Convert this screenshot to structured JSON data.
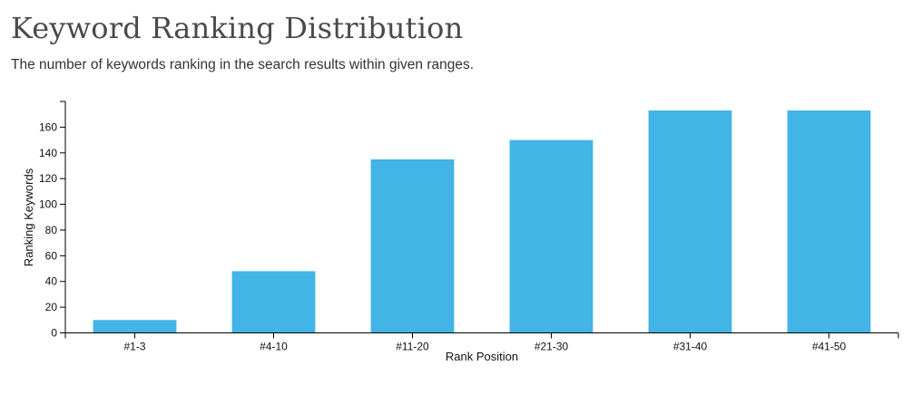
{
  "header": {
    "title": "Keyword Ranking Distribution",
    "subtitle": "The number of keywords ranking in the search results within given ranges."
  },
  "colors": {
    "bar": "#42b4e6",
    "axis": "#000000"
  },
  "chart_data": {
    "type": "bar",
    "title": "Keyword Ranking Distribution",
    "subtitle": "The number of keywords ranking in the search results within given ranges.",
    "xlabel": "Rank Position",
    "ylabel": "Ranking Keywords",
    "categories": [
      "#1-3",
      "#4-10",
      "#11-20",
      "#21-30",
      "#31-40",
      "#41-50"
    ],
    "values": [
      10,
      48,
      135,
      150,
      173,
      173
    ],
    "ylim": [
      0,
      180
    ],
    "yticks": [
      0,
      20,
      40,
      60,
      80,
      100,
      120,
      140,
      160
    ],
    "grid": false,
    "legend": "none"
  }
}
